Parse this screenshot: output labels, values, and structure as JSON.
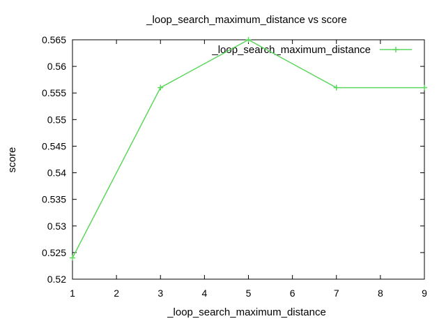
{
  "chart_data": {
    "type": "line",
    "title": "_loop_search_maximum_distance vs score",
    "xlabel": "_loop_search_maximum_distance",
    "ylabel": "score",
    "xlim": [
      1,
      9
    ],
    "ylim": [
      0.52,
      0.565
    ],
    "xticks": [
      1,
      2,
      3,
      4,
      5,
      6,
      7,
      8,
      9
    ],
    "yticks": [
      0.52,
      0.525,
      0.53,
      0.535,
      0.54,
      0.545,
      0.55,
      0.555,
      0.56,
      0.565
    ],
    "ytick_labels": [
      "0.52",
      "0.525",
      "0.53",
      "0.535",
      "0.54",
      "0.545",
      "0.55",
      "0.555",
      "0.56",
      "0.565"
    ],
    "grid": false,
    "legend_position": "top-right",
    "series": [
      {
        "name": "_loop_search_maximum_distance",
        "color": "#5cd65c",
        "marker": "plus",
        "x": [
          1,
          3,
          5,
          7,
          9
        ],
        "y": [
          0.524,
          0.556,
          0.565,
          0.556,
          0.556
        ]
      }
    ]
  }
}
